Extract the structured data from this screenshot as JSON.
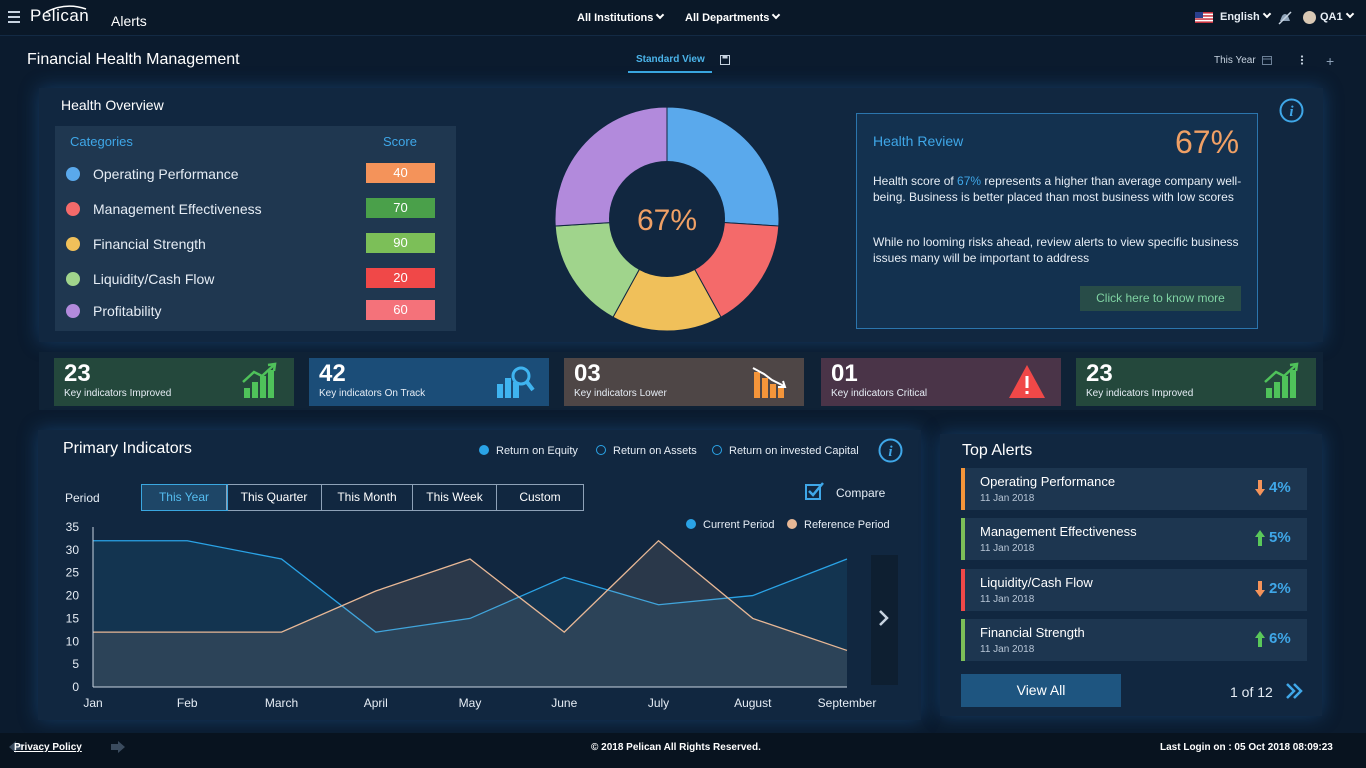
{
  "header": {
    "logo": "Pelican",
    "section": "Alerts",
    "institutions": "All Institutions",
    "departments": "All Departments",
    "language": "English",
    "user": "QA1"
  },
  "subheader": {
    "title": "Financial Health Management",
    "view": "Standard View",
    "period": "This Year"
  },
  "health_overview": {
    "title": "Health Overview",
    "categories_header": "Categories",
    "score_header": "Score",
    "categories": [
      {
        "label": "Operating Performance",
        "score": "40",
        "dot_color": "#5aa9ec",
        "score_color": "#f4935a",
        "percent": 26
      },
      {
        "label": "Management Effectiveness",
        "score": "70",
        "dot_color": "#f46a6a",
        "score_color": "#4aa04a",
        "percent": 16
      },
      {
        "label": "Financial Strength",
        "score": "90",
        "dot_color": "#f0c05a",
        "score_color": "#7cbf58",
        "percent": 16
      },
      {
        "label": "Liquidity/Cash Flow",
        "score": "20",
        "dot_color": "#a0d48c",
        "score_color": "#f04848",
        "percent": 16
      },
      {
        "label": "Profitability",
        "score": "60",
        "dot_color": "#b28adc",
        "score_color": "#f4727a",
        "percent": 26
      }
    ],
    "donut_center": "67%"
  },
  "health_review": {
    "title": "Health Review",
    "percent": "67%",
    "p1_pre": "Health score of ",
    "p1_hl": "67%",
    "p1_post": " represents a higher than average company well-being. Business is better placed than most business with low scores",
    "p2": "While no looming risks ahead, review alerts to view specific business issues many will be important to address",
    "cta": "Click here to know more"
  },
  "kpis": [
    {
      "value": "23",
      "label": "Key indicators Improved",
      "bg": "#24483c",
      "icon": "bar-chart-up-icon",
      "color": "#4fc25a"
    },
    {
      "value": "42",
      "label": "Key indicators On Track",
      "bg": "#1b4d78",
      "icon": "chart-magnifier-icon",
      "color": "#3fb4f0"
    },
    {
      "value": "03",
      "label": "Key indicators Lower",
      "bg": "#4e4646",
      "icon": "bar-chart-down-icon",
      "color": "#f4953a"
    },
    {
      "value": "01",
      "label": "Key indicators Critical",
      "bg": "#4a3448",
      "icon": "warning-icon",
      "color": "#f04848"
    },
    {
      "value": "23",
      "label": "Key indicators Improved",
      "bg": "#24483c",
      "icon": "bar-chart-up-icon",
      "color": "#4fc25a"
    }
  ],
  "primary_indicators": {
    "title": "Primary Indicators",
    "legend": [
      "Return on Equity",
      "Return on Assets",
      "Return on invested Capital"
    ],
    "period_label": "Period",
    "tabs": [
      "This Year",
      "This Quarter",
      "This Month",
      "This Week",
      "Custom"
    ],
    "active_tab": 0,
    "compare": "Compare",
    "current_label": "Current Period",
    "reference_label": "Reference Period"
  },
  "chart_data": {
    "type": "area",
    "categories": [
      "Jan",
      "Feb",
      "March",
      "April",
      "May",
      "June",
      "July",
      "August",
      "September"
    ],
    "series": [
      {
        "name": "Current Period",
        "values": [
          32,
          32,
          28,
          12,
          15,
          24,
          18,
          20,
          28
        ],
        "color": "#2aa3e6"
      },
      {
        "name": "Reference Period",
        "values": [
          12,
          12,
          12,
          21,
          28,
          12,
          32,
          15,
          8
        ],
        "color": "#e8b896"
      }
    ],
    "yticks": [
      "0",
      "5",
      "10",
      "15",
      "20",
      "25",
      "30",
      "35"
    ],
    "ylim": [
      0,
      35
    ],
    "grid": false
  },
  "top_alerts": {
    "title": "Top Alerts",
    "items": [
      {
        "name": "Operating Performance",
        "date": "11 Jan 2018",
        "pct": "4%",
        "dir": "down",
        "bar": "#f4953a"
      },
      {
        "name": "Management Effectiveness",
        "date": "11 Jan 2018",
        "pct": "5%",
        "dir": "up",
        "bar": "#7cbf58"
      },
      {
        "name": "Liquidity/Cash Flow",
        "date": "11 Jan 2018",
        "pct": "2%",
        "dir": "down",
        "bar": "#f04848"
      },
      {
        "name": "Financial Strength",
        "date": "11 Jan 2018",
        "pct": "6%",
        "dir": "up",
        "bar": "#7cbf58"
      }
    ],
    "view_all": "View All",
    "pager": "1 of 12"
  },
  "footer": {
    "privacy": "Privacy Policy",
    "copyright": "© 2018 Pelican All Rights Reserved.",
    "last_login": "Last Login on : 05 Oct 2018 08:09:23"
  }
}
